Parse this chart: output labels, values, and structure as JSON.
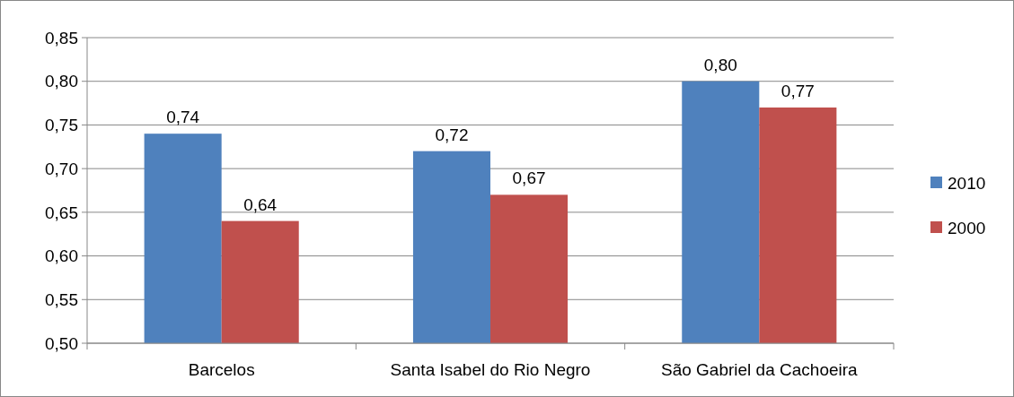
{
  "chart_data": {
    "type": "bar",
    "categories": [
      "Barcelos",
      "Santa Isabel do Rio Negro",
      "São Gabriel da Cachoeira"
    ],
    "series": [
      {
        "name": "2010",
        "color": "#4f81bd",
        "values": [
          0.74,
          0.72,
          0.8
        ],
        "value_labels": [
          "0,74",
          "0,72",
          "0,80"
        ]
      },
      {
        "name": "2000",
        "color": "#c0504d",
        "values": [
          0.64,
          0.67,
          0.77
        ],
        "value_labels": [
          "0,64",
          "0,67",
          "0,77"
        ]
      }
    ],
    "ylim": [
      0.5,
      0.85
    ],
    "yticks": [
      {
        "value": 0.5,
        "label": "0,50"
      },
      {
        "value": 0.55,
        "label": "0,55"
      },
      {
        "value": 0.6,
        "label": "0,60"
      },
      {
        "value": 0.65,
        "label": "0,65"
      },
      {
        "value": 0.7,
        "label": "0,70"
      },
      {
        "value": 0.75,
        "label": "0,75"
      },
      {
        "value": 0.8,
        "label": "0,80"
      },
      {
        "value": 0.85,
        "label": "0,85"
      }
    ],
    "grid": "y",
    "legend": "right"
  }
}
